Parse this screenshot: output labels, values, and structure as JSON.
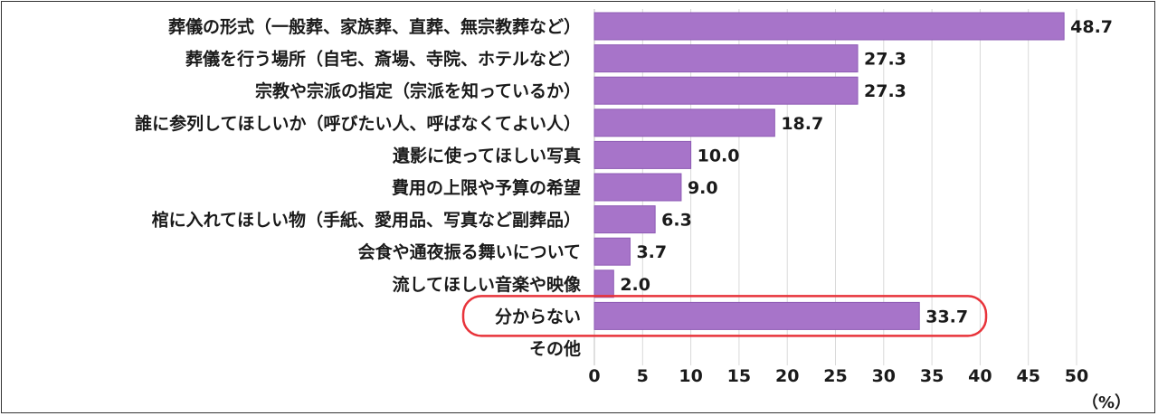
{
  "chart_data": {
    "type": "bar",
    "orientation": "horizontal",
    "categories": [
      "葬儀の形式（一般葬、家族葬、直葬、無宗教葬など）",
      "葬儀を行う場所（自宅、斎場、寺院、ホテルなど）",
      "宗教や宗派の指定（宗派を知っているか）",
      "誰に参列してほしいか（呼びたい人、呼ばなくてよい人）",
      "遺影に使ってほしい写真",
      "費用の上限や予算の希望",
      "棺に入れてほしい物（手紙、愛用品、写真など副葬品）",
      "会食や通夜振る舞いについて",
      "流してほしい音楽や映像",
      "分からない",
      "その他"
    ],
    "values": [
      48.7,
      27.3,
      27.3,
      18.7,
      10.0,
      9.0,
      6.3,
      3.7,
      2.0,
      33.7,
      null
    ],
    "value_labels": [
      "48.7",
      "27.3",
      "27.3",
      "18.7",
      "10.0",
      "9.0",
      "6.3",
      "3.7",
      "2.0",
      "33.7",
      ""
    ],
    "xlim": [
      0,
      50
    ],
    "xticks": [
      "0",
      "5",
      "10",
      "15",
      "20",
      "25",
      "30",
      "35",
      "40",
      "45",
      "50"
    ],
    "unit": "（%）",
    "highlighted_category": "分からない",
    "grid": "vertical",
    "colors": {
      "bar": "#A774C9",
      "bar_edge": "#8E5BB5",
      "grid": "#D9D9D9",
      "highlight": "#E8333A",
      "text": "#1A1A1A"
    }
  }
}
